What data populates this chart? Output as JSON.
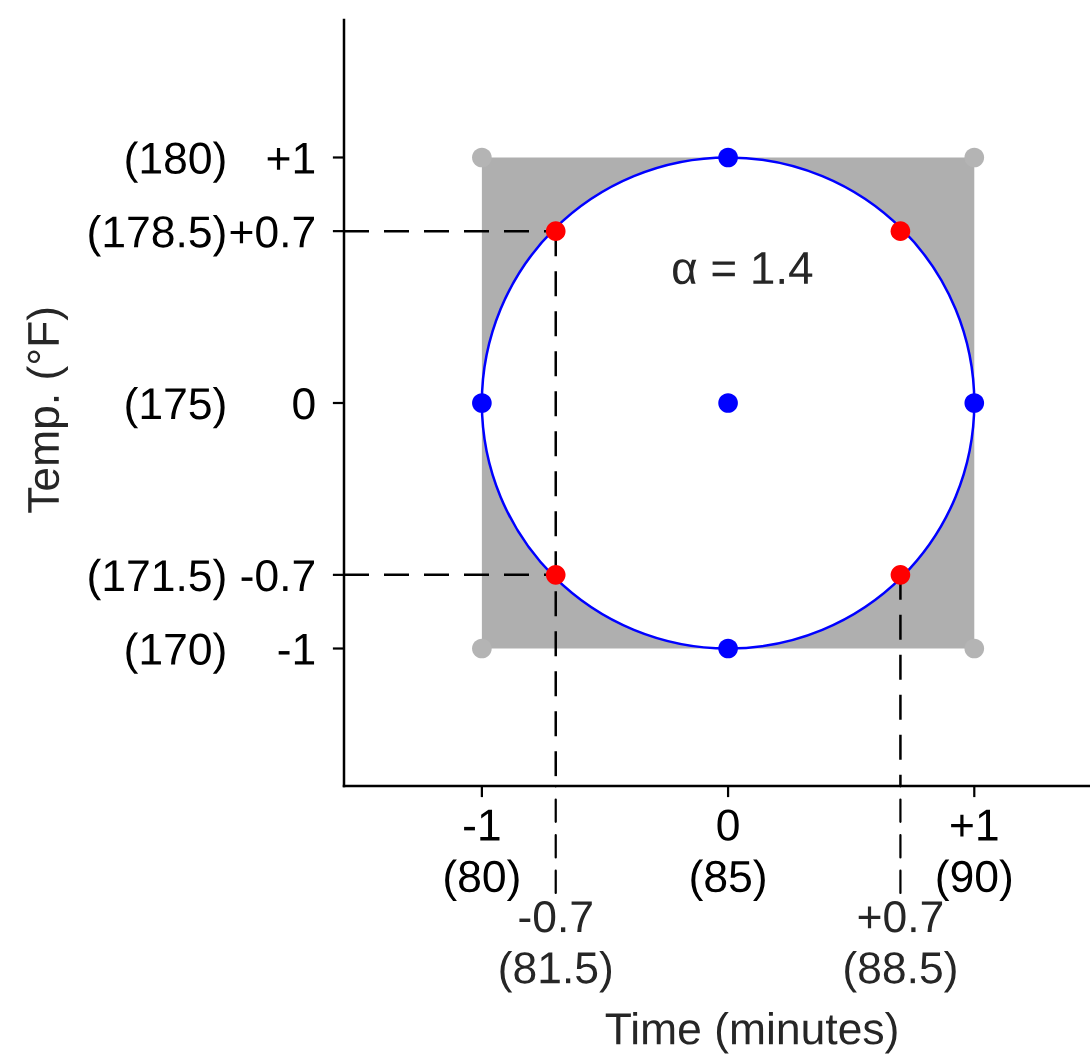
{
  "chart_data": {
    "type": "scatter",
    "xlabel": "Time (minutes)",
    "y2label": "Temp. (°F)",
    "annotations": [
      "α = 1.4",
      {
        "text": "-0.7\n(81.5)",
        "x": -0.7,
        "y": -1.56
      },
      {
        "text": "+0.7\n(88.5)",
        "x": 0.7,
        "y": -1.56
      }
    ],
    "xlim": [
      -1.56,
      1.47
    ],
    "ylim": [
      -1.56,
      1.56
    ],
    "xticks": [
      -1,
      0,
      {
        "value": 1,
        "label": "+1"
      }
    ],
    "yticks": [
      {
        "value": 1,
        "label": "+1"
      },
      {
        "value": 0.7,
        "label": "+0.7"
      },
      0,
      -0.7,
      -1
    ],
    "x2lim": [
      77.2,
      92.35
    ],
    "x2ticks": [
      {
        "value": 80,
        "label": "(80)"
      },
      {
        "value": 85,
        "label": "(85)"
      },
      {
        "value": 90,
        "label": "(90)"
      }
    ],
    "y2lim": [
      167.2,
      182.8
    ],
    "y2ticks": [
      {
        "value": 180,
        "label": "(180)"
      },
      {
        "value": 178.5,
        "label": "(178.5)"
      },
      {
        "value": 175,
        "label": "(175)"
      },
      {
        "value": 171.5,
        "label": "(171.5)"
      },
      {
        "value": 170,
        "label": "(170)"
      }
    ],
    "series": [
      {
        "type": "line",
        "color": "#000000",
        "line_style": "dashed",
        "marker": "none",
        "x": [
          -1.56,
          -0.7
        ],
        "values": [
          0.7,
          0.7
        ]
      },
      {
        "type": "line",
        "color": "#000000",
        "line_style": "dashed",
        "marker": "none",
        "x": [
          -1.56,
          -0.7
        ],
        "values": [
          -0.7,
          -0.7
        ]
      },
      {
        "type": "line",
        "color": "#000000",
        "line_style": "dashed",
        "marker": "none",
        "x": [
          -0.7,
          -0.7
        ],
        "values": [
          0.7,
          -1.56
        ]
      },
      {
        "type": "line",
        "color": "#000000",
        "line_style": "dashed",
        "marker": "none",
        "x": [
          0.7,
          0.7
        ],
        "values": [
          -0.7,
          -1.56
        ]
      },
      {
        "color": "#b4b4b4",
        "marker": "circle",
        "x": [
          -1,
          1,
          -1,
          1
        ],
        "values": [
          1,
          1,
          -1,
          -1
        ]
      },
      {
        "color": "#0000ff",
        "marker": "circle",
        "x": [
          0,
          -1,
          0,
          1,
          0
        ],
        "values": [
          1,
          0,
          0,
          0,
          -1
        ]
      },
      {
        "color": "#ff0000",
        "marker": "circle",
        "x": [
          -0.7,
          0.7,
          -0.7,
          0.7
        ],
        "values": [
          0.7,
          0.7,
          -0.7,
          -0.7
        ]
      }
    ]
  }
}
